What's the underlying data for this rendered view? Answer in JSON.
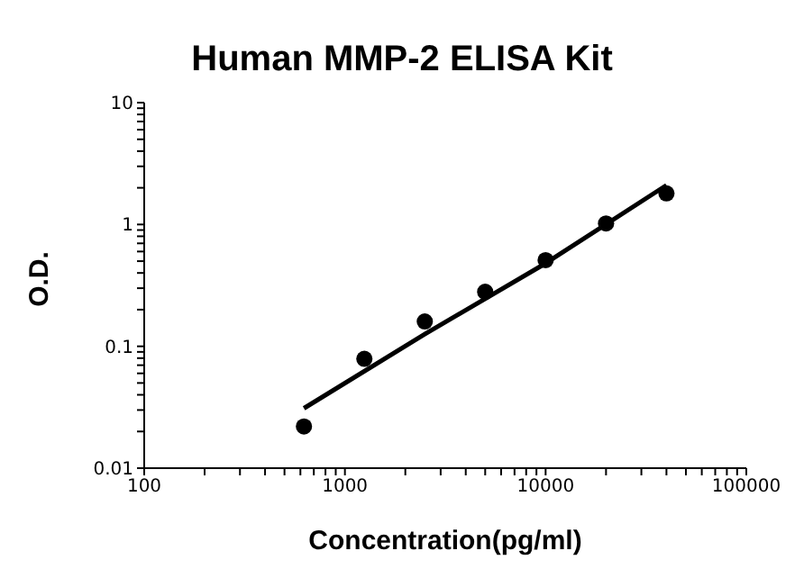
{
  "chart_data": {
    "type": "scatter",
    "title": "Human MMP-2 ELISA Kit",
    "xlabel": "Concentration(pg/ml)",
    "ylabel": "O.D.",
    "log": "xy",
    "marker": "circle",
    "xlim": [
      100,
      100000
    ],
    "ylim": [
      0.01,
      10
    ],
    "xticks": [
      100,
      {
        "value": 200,
        "label": null
      },
      {
        "value": 300,
        "label": null
      },
      {
        "value": 400,
        "label": null
      },
      {
        "value": 500,
        "label": null
      },
      {
        "value": 600,
        "label": null
      },
      {
        "value": 700,
        "label": null
      },
      {
        "value": 800,
        "label": null
      },
      {
        "value": 900,
        "label": null
      },
      1000,
      {
        "value": 2000,
        "label": null
      },
      {
        "value": 3000,
        "label": null
      },
      {
        "value": 4000,
        "label": null
      },
      {
        "value": 5000,
        "label": null
      },
      {
        "value": 6000,
        "label": null
      },
      {
        "value": 7000,
        "label": null
      },
      {
        "value": 8000,
        "label": null
      },
      {
        "value": 9000,
        "label": null
      },
      10000,
      {
        "value": 20000,
        "label": null
      },
      {
        "value": 30000,
        "label": null
      },
      {
        "value": 40000,
        "label": null
      },
      {
        "value": 50000,
        "label": null
      },
      {
        "value": 60000,
        "label": null
      },
      {
        "value": 70000,
        "label": null
      },
      {
        "value": 80000,
        "label": null
      },
      {
        "value": 90000,
        "label": null
      },
      100000
    ],
    "yticks": [
      0.01,
      {
        "value": 0.02,
        "label": null
      },
      {
        "value": 0.03,
        "label": null
      },
      {
        "value": 0.04,
        "label": null
      },
      {
        "value": 0.05,
        "label": null
      },
      {
        "value": 0.06,
        "label": null
      },
      {
        "value": 0.07,
        "label": null
      },
      {
        "value": 0.08,
        "label": null
      },
      {
        "value": 0.09,
        "label": null
      },
      0.1,
      {
        "value": 0.2,
        "label": null
      },
      {
        "value": 0.3,
        "label": null
      },
      {
        "value": 0.4,
        "label": null
      },
      {
        "value": 0.5,
        "label": null
      },
      {
        "value": 0.6,
        "label": null
      },
      {
        "value": 0.7,
        "label": null
      },
      {
        "value": 0.8,
        "label": null
      },
      {
        "value": 0.9,
        "label": null
      },
      1,
      {
        "value": 2,
        "label": null
      },
      {
        "value": 3,
        "label": null
      },
      {
        "value": 4,
        "label": null
      },
      {
        "value": 5,
        "label": null
      },
      {
        "value": 6,
        "label": null
      },
      {
        "value": 7,
        "label": null
      },
      {
        "value": 8,
        "label": null
      },
      {
        "value": 9,
        "label": null
      },
      10
    ],
    "x": [
      625,
      1250,
      2500,
      5000,
      10000,
      20000,
      40000
    ],
    "series": [
      {
        "color": "#000000",
        "values": [
          0.022,
          0.079,
          0.16,
          0.28,
          0.51,
          1.02,
          1.8
        ]
      },
      {
        "type": "line",
        "color": "#000000",
        "marker": "none",
        "line_style": "solid",
        "x": [
          625,
          2500,
          10000,
          40000
        ],
        "values": [
          0.031,
          0.126,
          0.48,
          2.1
        ]
      }
    ]
  }
}
